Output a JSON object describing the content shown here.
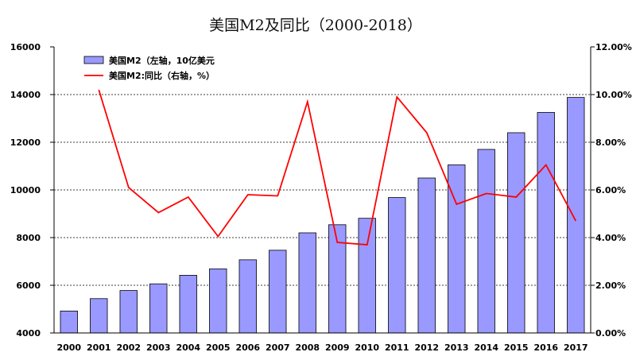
{
  "chart_data": {
    "type": "bar",
    "title": "美国M2及同比（2000-2018）",
    "categories": [
      "2000",
      "2001",
      "2002",
      "2003",
      "2004",
      "2005",
      "2006",
      "2007",
      "2008",
      "2009",
      "2010",
      "2011",
      "2012",
      "2013",
      "2014",
      "2015",
      "2016",
      "2017"
    ],
    "series": [
      {
        "name": "美国M2（左轴，10亿美元",
        "type": "bar",
        "axis": "left",
        "color": "#9999ff",
        "values": [
          4920,
          5440,
          5780,
          6060,
          6420,
          6690,
          7070,
          7470,
          8200,
          8540,
          8810,
          9680,
          10500,
          11050,
          11700,
          12400,
          13250,
          13880
        ]
      },
      {
        "name": "美国M2:同比（右轴，%）",
        "type": "line",
        "axis": "right",
        "color": "#ff0000",
        "values": [
          null,
          10.2,
          6.1,
          5.05,
          5.7,
          4.05,
          5.8,
          5.75,
          9.7,
          3.8,
          3.7,
          9.9,
          8.4,
          5.4,
          5.85,
          5.7,
          7.05,
          4.7
        ]
      }
    ],
    "y_left": {
      "min": 4000,
      "max": 16000,
      "step": 2000,
      "tick_labels": [
        "4000",
        "6000",
        "8000",
        "10000",
        "12000",
        "14000",
        "16000"
      ]
    },
    "y_right": {
      "min": 0,
      "max": 12,
      "step": 2,
      "tick_labels": [
        "0.00%",
        "2.00%",
        "4.00%",
        "6.00%",
        "8.00%",
        "10.00%",
        "12.00%"
      ]
    },
    "grid": true,
    "legend_position": "top-left"
  }
}
